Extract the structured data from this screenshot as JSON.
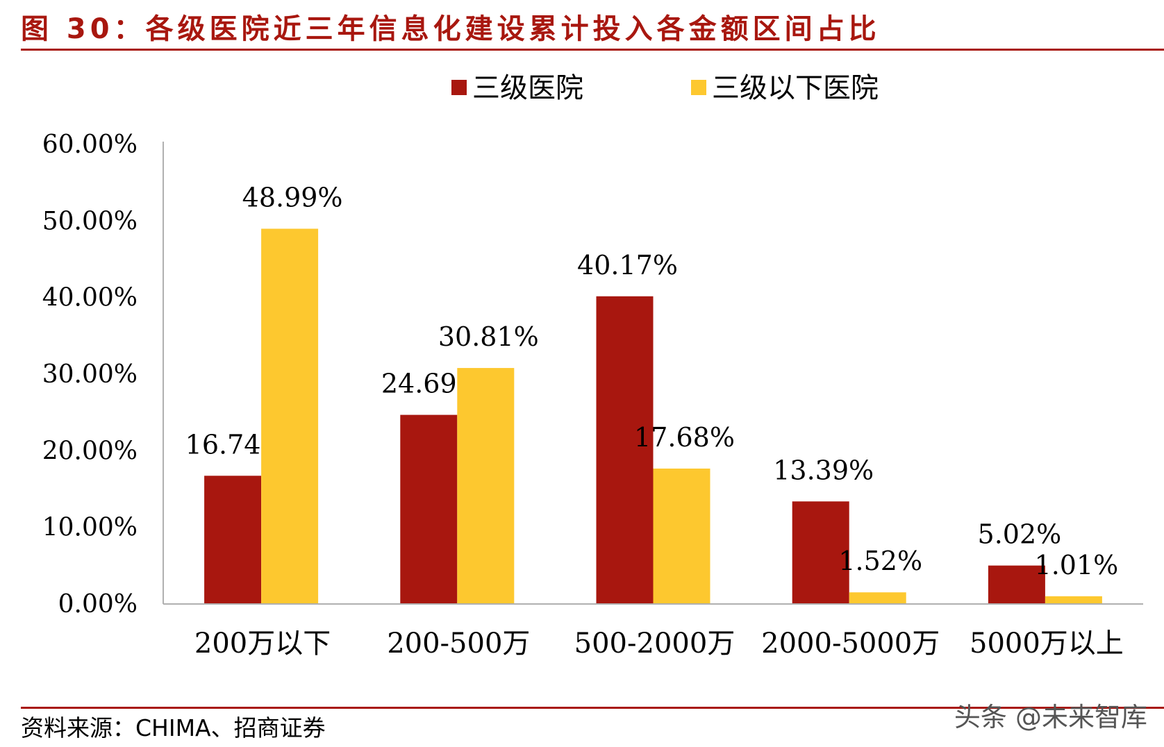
{
  "figure_title": "图 30：各级医院近三年信息化建设累计投入各金额区间占比",
  "source": "资料来源：CHIMA、招商证券",
  "watermark": "头条 @未来智库",
  "colors": {
    "accent": "#a8170f",
    "series1": "#a8170f",
    "series2": "#fdc82f"
  },
  "chart_data": {
    "type": "bar",
    "categories": [
      "200万以下",
      "200-500万",
      "500-2000万",
      "2000-5000万",
      "5000万以上"
    ],
    "series": [
      {
        "name": "三级医院",
        "values": [
          16.74,
          24.69,
          40.17,
          13.39,
          5.02
        ],
        "labels": [
          "16.74%",
          "24.69%",
          "40.17%",
          "13.39%",
          "5.02%"
        ],
        "color": "#a8170f"
      },
      {
        "name": "三级以下医院",
        "values": [
          48.99,
          30.81,
          17.68,
          1.52,
          1.01
        ],
        "labels": [
          "48.99%",
          "30.81%",
          "17.68%",
          "1.52%",
          "1.01%"
        ],
        "color": "#fdc82f"
      }
    ],
    "y_ticks": [
      0,
      10,
      20,
      30,
      40,
      50,
      60
    ],
    "y_tick_labels": [
      "0.00%",
      "10.00%",
      "20.00%",
      "30.00%",
      "40.00%",
      "50.00%",
      "60.00%"
    ],
    "ylim": [
      0,
      60
    ],
    "grid": false,
    "legend_position": "top-center"
  }
}
